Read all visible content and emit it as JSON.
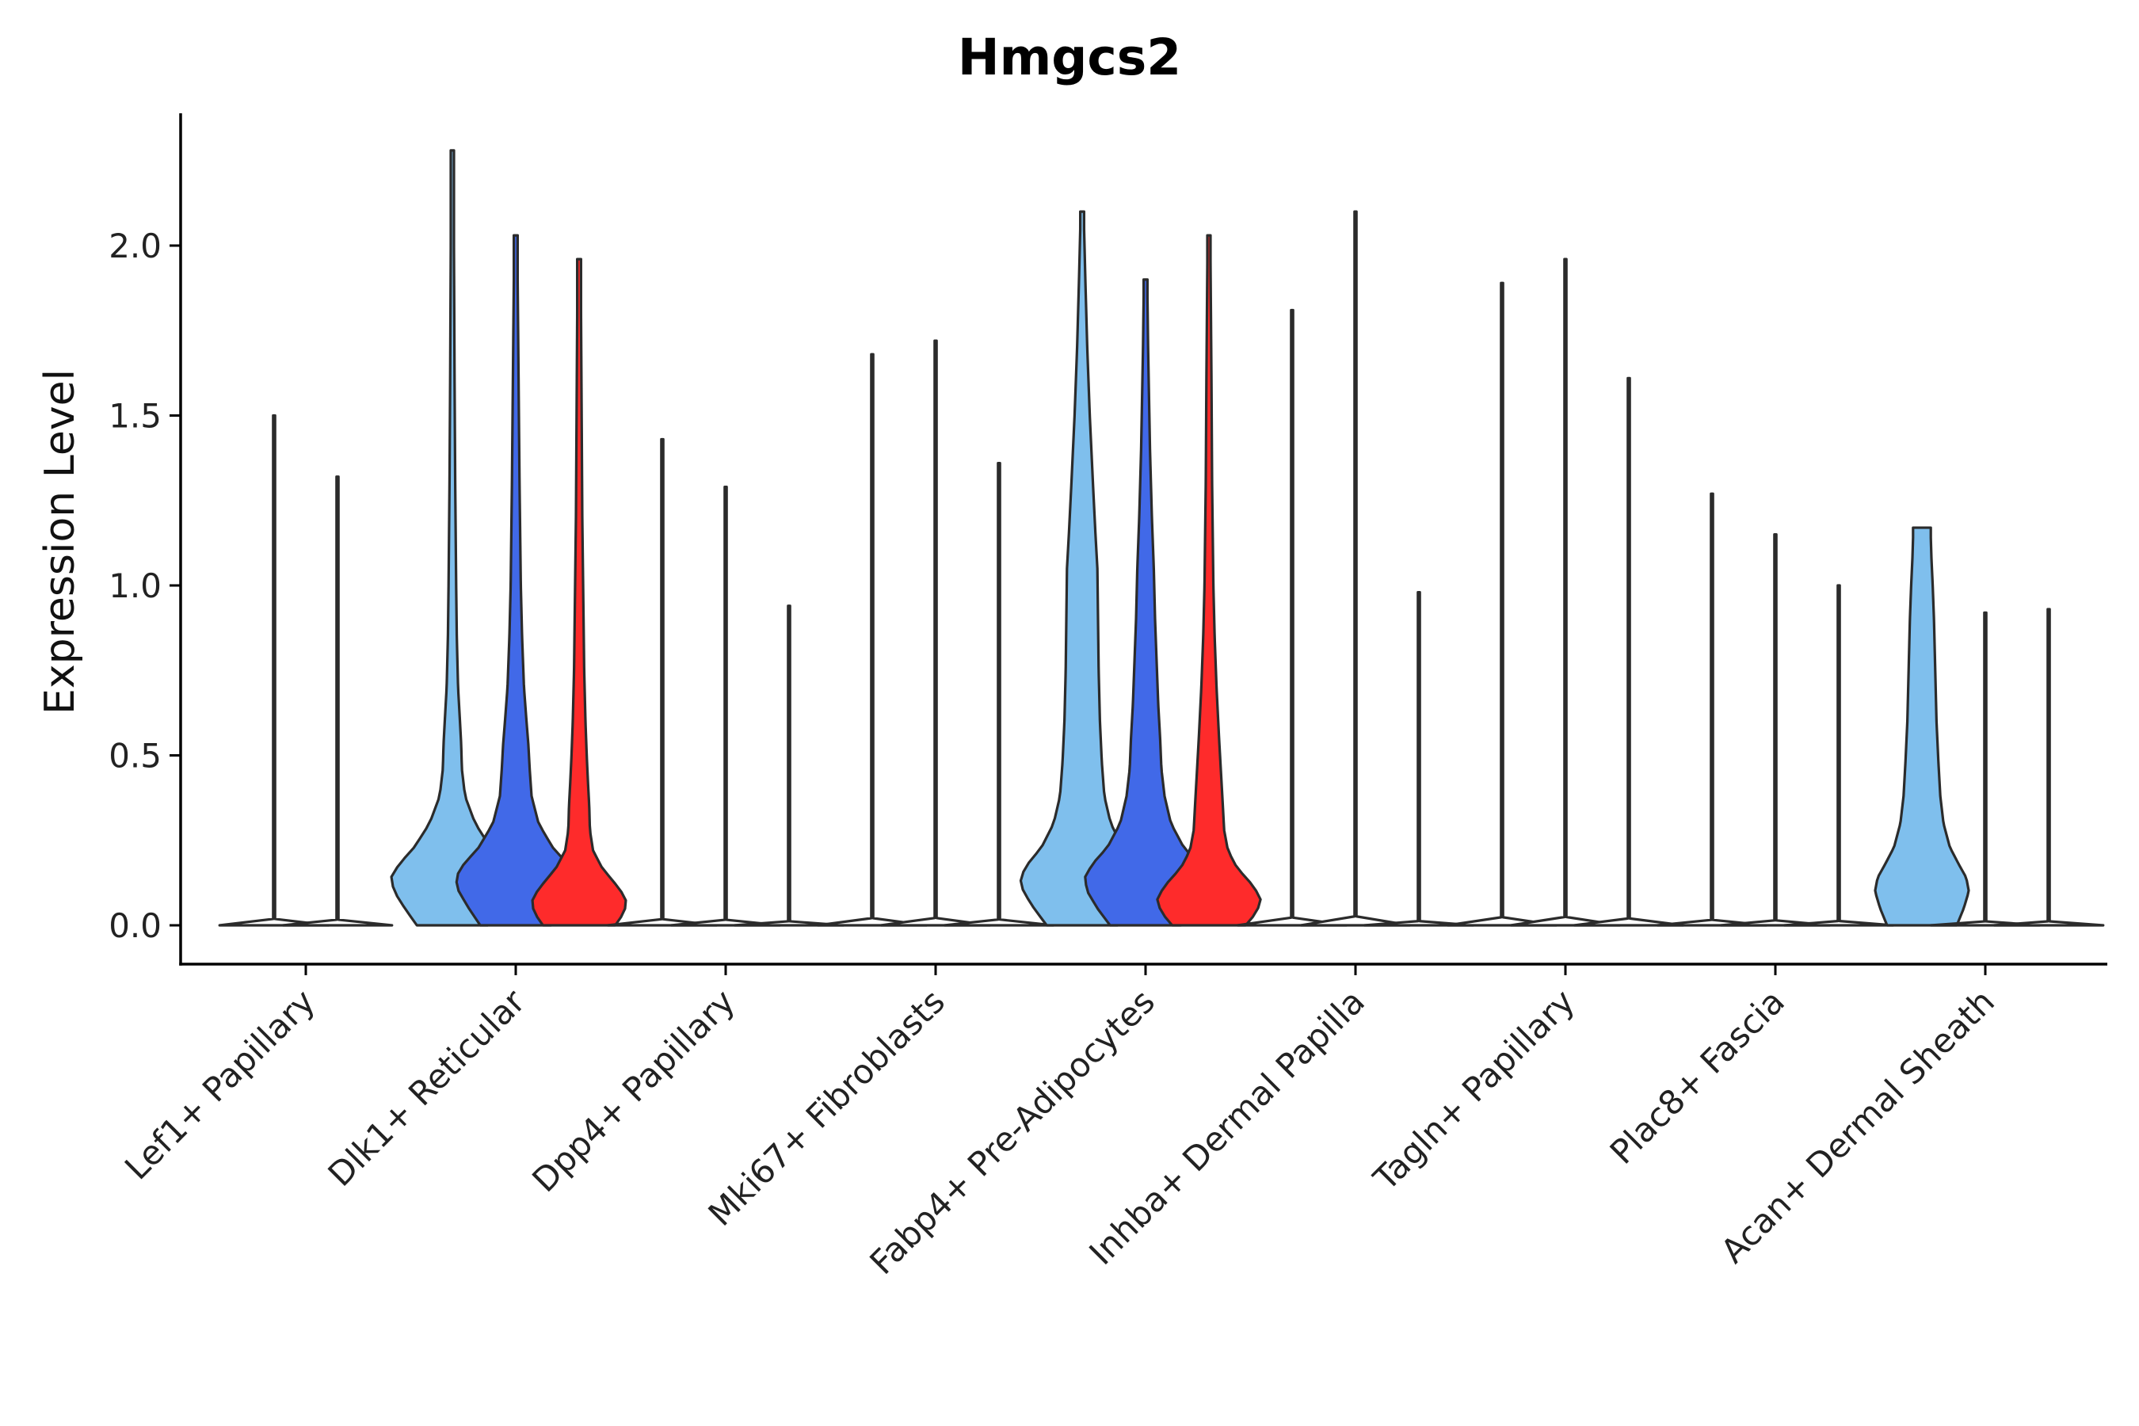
{
  "chart_data": {
    "type": "violin",
    "title": "Hmgcs2",
    "xlabel": "",
    "ylabel": "Expression Level",
    "ylim": [
      -0.11,
      2.4
    ],
    "yticks": [
      0.0,
      0.5,
      1.0,
      1.5,
      2.0
    ],
    "ytick_labels": [
      "0.0",
      "0.5",
      "1.0",
      "1.5",
      "2.0"
    ],
    "series_colors": {
      "s1": "#7fbfed",
      "s2": "#4169e8",
      "s3": "#fe2b2b"
    },
    "categories": [
      {
        "label": "Lef1+ Papillary",
        "violins": [
          {
            "series": "s1",
            "max": 1.5,
            "shape": "flat"
          },
          {
            "series": "s2",
            "max": 1.32,
            "shape": "flat"
          }
        ]
      },
      {
        "label": "Dlk1+ Reticular",
        "violins": [
          {
            "series": "s1",
            "max": 2.28,
            "shape": "dlk_a"
          },
          {
            "series": "s2",
            "max": 2.03,
            "shape": "dlk_b"
          },
          {
            "series": "s3",
            "max": 1.96,
            "shape": "dlk_c"
          }
        ]
      },
      {
        "label": "Dpp4+ Papillary",
        "violins": [
          {
            "series": "s1",
            "max": 1.43,
            "shape": "flat"
          },
          {
            "series": "s2",
            "max": 1.29,
            "shape": "flat"
          },
          {
            "series": "s3",
            "max": 0.94,
            "shape": "flat"
          }
        ]
      },
      {
        "label": "Mki67+ Fibroblasts",
        "violins": [
          {
            "series": "s1",
            "max": 1.68,
            "shape": "flat"
          },
          {
            "series": "s2",
            "max": 1.72,
            "shape": "flat"
          },
          {
            "series": "s3",
            "max": 1.36,
            "shape": "flat"
          }
        ]
      },
      {
        "label": "Fabp4+ Pre-Adipocytes",
        "violins": [
          {
            "series": "s1",
            "max": 2.1,
            "shape": "fab_a"
          },
          {
            "series": "s2",
            "max": 1.9,
            "shape": "fab_b"
          },
          {
            "series": "s3",
            "max": 2.03,
            "shape": "fab_c"
          }
        ]
      },
      {
        "label": "Inhba+ Dermal Papilla",
        "violins": [
          {
            "series": "s1",
            "max": 1.81,
            "shape": "flat"
          },
          {
            "series": "s2",
            "max": 2.1,
            "shape": "flat"
          },
          {
            "series": "s3",
            "max": 0.98,
            "shape": "flat"
          }
        ]
      },
      {
        "label": "Tagln+ Papillary",
        "violins": [
          {
            "series": "s1",
            "max": 1.89,
            "shape": "flat"
          },
          {
            "series": "s2",
            "max": 1.96,
            "shape": "flat"
          },
          {
            "series": "s3",
            "max": 1.61,
            "shape": "flat"
          }
        ]
      },
      {
        "label": "Plac8+ Fascia",
        "violins": [
          {
            "series": "s1",
            "max": 1.27,
            "shape": "flat"
          },
          {
            "series": "s2",
            "max": 1.15,
            "shape": "flat"
          },
          {
            "series": "s3",
            "max": 1.0,
            "shape": "flat"
          }
        ]
      },
      {
        "label": "Acan+ Dermal Sheath",
        "violins": [
          {
            "series": "s1",
            "max": 1.17,
            "shape": "acan_a"
          },
          {
            "series": "s2",
            "max": 0.92,
            "shape": "flat"
          },
          {
            "series": "s3",
            "max": 0.93,
            "shape": "flat"
          }
        ]
      }
    ]
  }
}
